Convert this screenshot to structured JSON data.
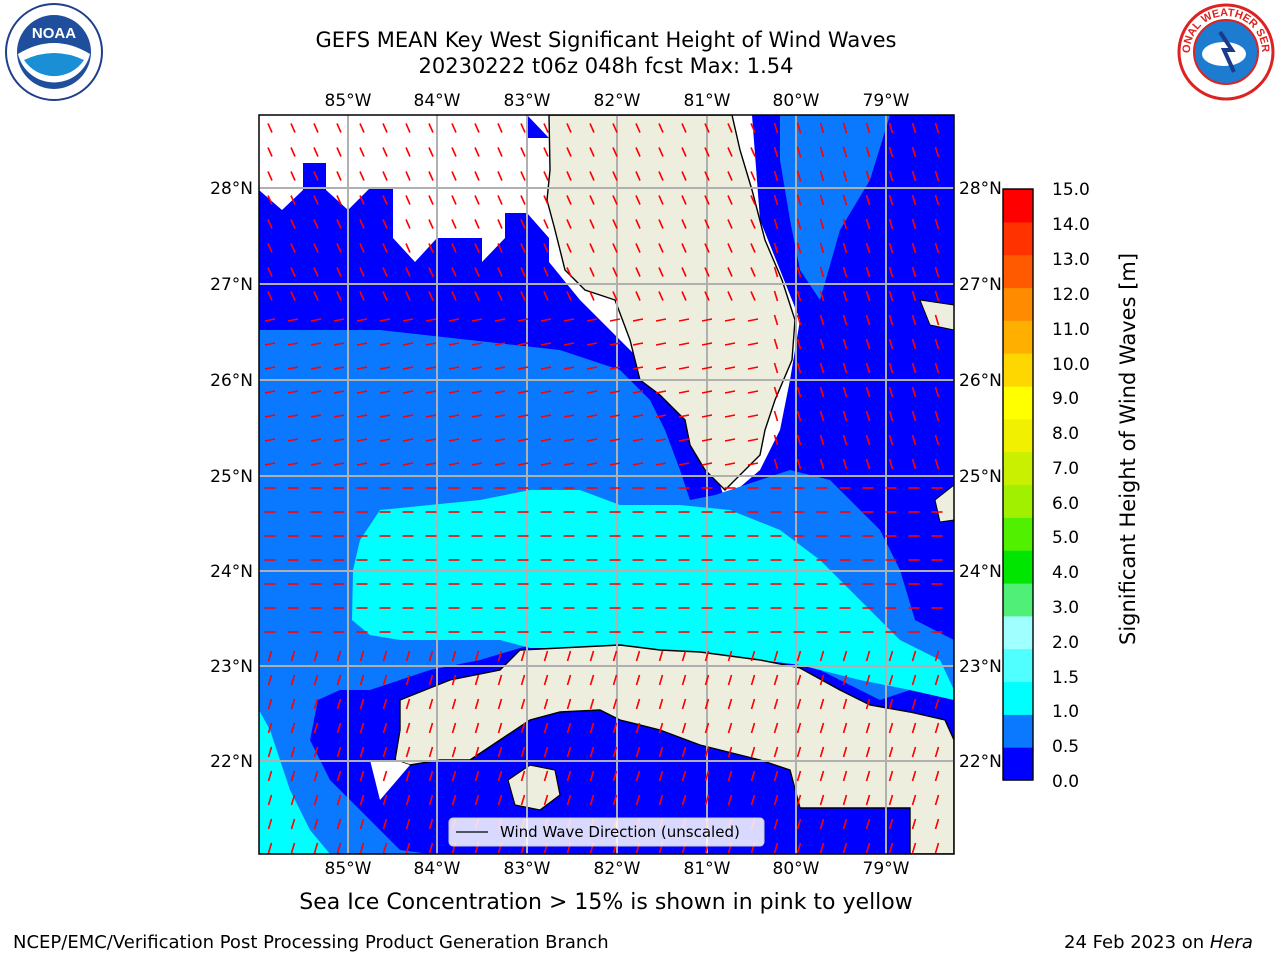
{
  "title": {
    "line1": "GEFS MEAN Key West Significant Height of Wind Waves",
    "line2": "20230222 t06z 048h fcst   Max: 1.54"
  },
  "logos": {
    "left": "NOAA",
    "right": "NATIONAL WEATHER SERVICE"
  },
  "map": {
    "lon_ticks": [
      "85°W",
      "84°W",
      "83°W",
      "82°W",
      "81°W",
      "80°W",
      "79°W"
    ],
    "lat_ticks": [
      "28°N",
      "27°N",
      "26°N",
      "25°N",
      "24°N",
      "23°N",
      "22°N"
    ],
    "legend_label": "Wind Wave Direction (unscaled)",
    "colors": {
      "land": "#eeeedf",
      "band_0_0p5": "#0000ff",
      "band_0p5_1": "#0a78ff",
      "band_1_1p5": "#00ffff",
      "arrow": "#ff0000"
    }
  },
  "colorbar": {
    "ticks": [
      "15.0",
      "14.0",
      "13.0",
      "12.0",
      "11.0",
      "10.0",
      "9.0",
      "8.0",
      "7.0",
      "6.0",
      "5.0",
      "4.0",
      "3.0",
      "2.0",
      "1.5",
      "1.0",
      "0.5",
      "0.0"
    ],
    "label": "Significant Height of Wind Waves [m]",
    "colors": [
      "#0000ff",
      "#0a78ff",
      "#00ffff",
      "#50ffff",
      "#a0ffff",
      "#50f078",
      "#00e600",
      "#50f000",
      "#a0f000",
      "#c8f000",
      "#f0f000",
      "#ffff00",
      "#ffd700",
      "#ffaf00",
      "#ff8c00",
      "#ff5a00",
      "#ff3200",
      "#ff0000"
    ]
  },
  "sea_ice_note": "Sea Ice Concentration > 15% is shown in pink to yellow",
  "footer": {
    "left": "NCEP/EMC/Verification Post Processing Product Generation Branch",
    "right_date": "24 Feb 2023 on ",
    "right_host": "Hera"
  }
}
